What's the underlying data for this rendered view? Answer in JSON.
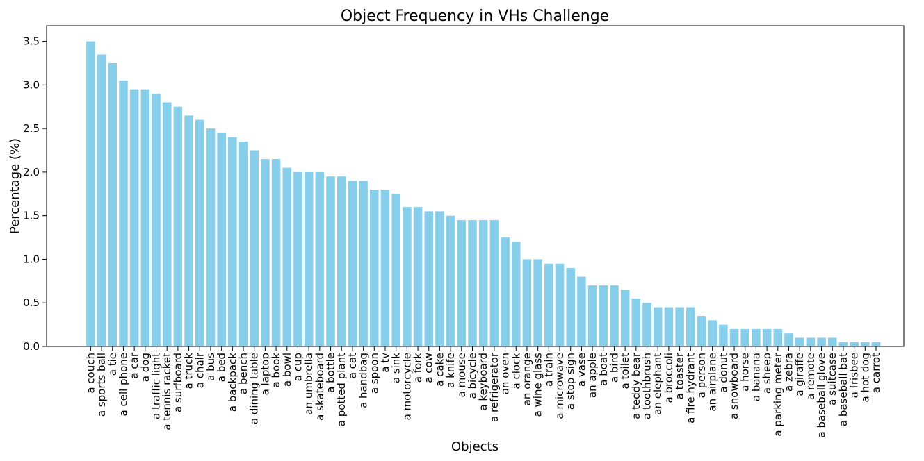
{
  "chart_data": {
    "type": "bar",
    "title": "Object Frequency in VHs Challenge",
    "xlabel": "Objects",
    "ylabel": "Percentage (%)",
    "color": "#87ceeb",
    "categories": [
      "a couch",
      "a sports ball",
      "a tie",
      "a cell phone",
      "a car",
      "a dog",
      "a traffic light",
      "a tennis racket",
      "a surfboard",
      "a truck",
      "a chair",
      "a bus",
      "a bed",
      "a backpack",
      "a bench",
      "a dining table",
      "a laptop",
      "a book",
      "a bowl",
      "a cup",
      "an umbrella",
      "a skateboard",
      "a bottle",
      "a potted plant",
      "a cat",
      "a handbag",
      "a spoon",
      "a tv",
      "a sink",
      "a motorcycle",
      "a fork",
      "a cow",
      "a cake",
      "a knife",
      "a mouse",
      "a bicycle",
      "a keyboard",
      "a refrigerator",
      "an oven",
      "a clock",
      "an orange",
      "a wine glass",
      "a train",
      "a microwave",
      "a stop sign",
      "a vase",
      "an apple",
      "a boat",
      "a bird",
      "a toilet",
      "a teddy bear",
      "a toothbrush",
      "an elephant",
      "a broccoli",
      "a toaster",
      "a fire hydrant",
      "a person",
      "an airplane",
      "a donut",
      "a snowboard",
      "a horse",
      "a banana",
      "a sheep",
      "a parking meter",
      "a zebra",
      "a giraffe",
      "a remote",
      "a baseball glove",
      "a suitcase",
      "a baseball bat",
      "a frisbee",
      "a hot dog",
      "a carrot"
    ],
    "values": [
      3.5,
      3.35,
      3.25,
      3.05,
      2.95,
      2.95,
      2.9,
      2.8,
      2.75,
      2.65,
      2.6,
      2.5,
      2.45,
      2.4,
      2.35,
      2.25,
      2.15,
      2.15,
      2.05,
      2.0,
      2.0,
      2.0,
      1.95,
      1.95,
      1.9,
      1.9,
      1.8,
      1.8,
      1.75,
      1.6,
      1.6,
      1.55,
      1.55,
      1.5,
      1.45,
      1.45,
      1.45,
      1.45,
      1.25,
      1.2,
      1.0,
      1.0,
      0.95,
      0.95,
      0.9,
      0.8,
      0.7,
      0.7,
      0.7,
      0.65,
      0.55,
      0.5,
      0.45,
      0.45,
      0.45,
      0.45,
      0.35,
      0.3,
      0.25,
      0.2,
      0.2,
      0.2,
      0.2,
      0.2,
      0.15,
      0.1,
      0.1,
      0.1,
      0.1,
      0.05,
      0.05,
      0.05,
      0.05
    ],
    "ylim": [
      0,
      3.68
    ],
    "yticks": [
      {
        "value": 0,
        "label": "0.0"
      },
      0.5,
      {
        "value": 1,
        "label": "1.0"
      },
      1.5,
      {
        "value": 2,
        "label": "2.0"
      },
      2.5,
      {
        "value": 3,
        "label": "3.0"
      },
      3.5
    ]
  }
}
